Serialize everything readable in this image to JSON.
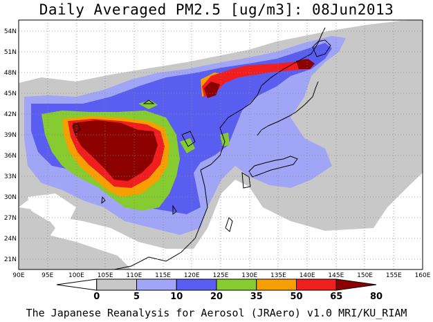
{
  "title": "Daily Averaged PM2.5 [ug/m3]: 08Jun2013",
  "credit": "The Japanese Reanalysis for Aerosol (JRAero) v1.0 MRI/KU_RIAM",
  "map": {
    "lon_range": [
      90,
      160
    ],
    "lat_range": [
      19.5,
      55.5
    ],
    "lon_ticks": [
      "90E",
      "95E",
      "100E",
      "105E",
      "110E",
      "115E",
      "120E",
      "125E",
      "130E",
      "135E",
      "140E",
      "145E",
      "150E",
      "155E",
      "160E"
    ],
    "lat_ticks": [
      "21N",
      "24N",
      "27N",
      "30N",
      "33N",
      "36N",
      "39N",
      "42N",
      "45N",
      "48N",
      "51N",
      "54N"
    ]
  },
  "colorbar": {
    "levels": [
      "0",
      "5",
      "10",
      "20",
      "35",
      "50",
      "65",
      "80"
    ],
    "colors": [
      "#ffffff",
      "#c8c8c8",
      "#a0a5f5",
      "#5a5ef0",
      "#86cc30",
      "#f5a000",
      "#f01e1e",
      "#8c0000"
    ]
  }
}
